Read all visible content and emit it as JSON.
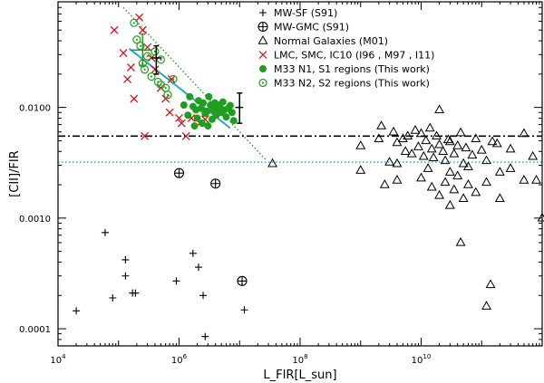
{
  "chart_data": {
    "type": "scatter",
    "title": "",
    "xlabel": "L_FIR[L_sun]",
    "ylabel": "[CII]/FIR",
    "xscale": "log",
    "yscale": "log",
    "xlim": [
      10000,
      1000000000000.0
    ],
    "ylim": [
      7e-05,
      0.09
    ],
    "x_tick_labels": [
      {
        "value": 10000,
        "base": "10",
        "exp": "4"
      },
      {
        "value": 1000000,
        "base": "10",
        "exp": "6"
      },
      {
        "value": 100000000,
        "base": "10",
        "exp": "8"
      },
      {
        "value": 10000000000,
        "base": "10",
        "exp": "10"
      }
    ],
    "y_tick_labels": [
      {
        "value": 0.0001,
        "label": "0.0001"
      },
      {
        "value": 0.001,
        "label": "0.0010"
      },
      {
        "value": 0.01,
        "label": "0.0100"
      }
    ],
    "legend_position": "top-right",
    "series": [
      {
        "name": "MW-SF (S91)",
        "marker": "plus",
        "color": "#000000",
        "points": [
          [
            20000,
            0.000145
          ],
          [
            60000,
            0.00074
          ],
          [
            80000,
            0.00019
          ],
          [
            130000,
            0.00042
          ],
          [
            130000,
            0.0003
          ],
          [
            170000,
            0.00021
          ],
          [
            190000,
            0.00021
          ],
          [
            900000,
            0.00027
          ],
          [
            1700000,
            0.00048
          ],
          [
            2100000,
            0.00036
          ],
          [
            2500000,
            0.0002
          ],
          [
            2700000,
            8.5e-05
          ],
          [
            12000000,
            0.000148
          ]
        ]
      },
      {
        "name": "MW-GMC (S91)",
        "marker": "circle-plus",
        "color": "#000000",
        "points": [
          [
            1000000,
            0.00255
          ],
          [
            4000000,
            0.00205
          ],
          [
            11000000,
            0.00027
          ]
        ]
      },
      {
        "name": "Normal Galaxies (M01)",
        "marker": "triangle",
        "color": "#000000",
        "points": [
          [
            35000000,
            0.0031
          ],
          [
            1000000000.0,
            0.0027
          ],
          [
            3000000000.0,
            0.0032
          ],
          [
            4000000000.0,
            0.0031
          ],
          [
            20000000000.0,
            0.0095
          ],
          [
            1000000000.0,
            0.0045
          ],
          [
            2200000000.0,
            0.0068
          ],
          [
            3500000000.0,
            0.006
          ],
          [
            4000000000.0,
            0.0048
          ],
          [
            5000000000.0,
            0.0052
          ],
          [
            5500000000.0,
            0.004
          ],
          [
            6000000000.0,
            0.0055
          ],
          [
            7000000000.0,
            0.0038
          ],
          [
            8000000000.0,
            0.0062
          ],
          [
            9000000000.0,
            0.0044
          ],
          [
            10000000000.0,
            0.0058
          ],
          [
            11000000000.0,
            0.0036
          ],
          [
            12000000000.0,
            0.005
          ],
          [
            13000000000.0,
            0.0028
          ],
          [
            14000000000.0,
            0.0065
          ],
          [
            15000000000.0,
            0.0042
          ],
          [
            16000000000.0,
            0.0035
          ],
          [
            18000000000.0,
            0.0055
          ],
          [
            20000000000.0,
            0.0046
          ],
          [
            23000000000.0,
            0.004
          ],
          [
            25000000000.0,
            0.0033
          ],
          [
            28000000000.0,
            0.0051
          ],
          [
            30000000000.0,
            0.0026
          ],
          [
            35000000000.0,
            0.0038
          ],
          [
            40000000000.0,
            0.0045
          ],
          [
            45000000000.0,
            0.0059
          ],
          [
            50000000000.0,
            0.0031
          ],
          [
            55000000000.0,
            0.0043
          ],
          [
            60000000000.0,
            0.0029
          ],
          [
            70000000000.0,
            0.0037
          ],
          [
            80000000000.0,
            0.0052
          ],
          [
            100000000000.0,
            0.0041
          ],
          [
            120000000000.0,
            0.0033
          ],
          [
            150000000000.0,
            0.0049
          ],
          [
            200000000000.0,
            0.0026
          ],
          [
            300000000000.0,
            0.0042
          ],
          [
            500000000000.0,
            0.0058
          ],
          [
            700000000000.0,
            0.0036
          ],
          [
            800000000000.0,
            0.0022
          ],
          [
            10000000000.0,
            0.0023
          ],
          [
            15000000000.0,
            0.0019
          ],
          [
            20000000000.0,
            0.0016
          ],
          [
            25000000000.0,
            0.0021
          ],
          [
            30000000000.0,
            0.0013
          ],
          [
            35000000000.0,
            0.0018
          ],
          [
            40000000000.0,
            0.0024
          ],
          [
            50000000000.0,
            0.0015
          ],
          [
            60000000000.0,
            0.002
          ],
          [
            80000000000.0,
            0.0017
          ],
          [
            120000000000.0,
            0.0021
          ],
          [
            200000000000.0,
            0.0015
          ],
          [
            500000000000.0,
            0.0022
          ],
          [
            1000000000000.0,
            0.001
          ],
          [
            45000000000.0,
            0.0006
          ],
          [
            140000000000.0,
            0.00025
          ],
          [
            120000000000.0,
            0.00016
          ],
          [
            2000000000.0,
            0.0052
          ],
          [
            4000000000.0,
            0.0022
          ],
          [
            2500000000.0,
            0.002
          ],
          [
            30000000000.0,
            0.0049
          ],
          [
            180000000000.0,
            0.0047
          ],
          [
            300000000000.0,
            0.0028
          ]
        ]
      },
      {
        "name": "LMC, SMC, IC10 (I96 , M97 , I11)",
        "marker": "x",
        "color": "#e3000f",
        "points": [
          [
            85000,
            0.05
          ],
          [
            120000,
            0.031
          ],
          [
            140000,
            0.018
          ],
          [
            160000,
            0.023
          ],
          [
            180000,
            0.012
          ],
          [
            220000,
            0.065
          ],
          [
            250000,
            0.05
          ],
          [
            270000,
            0.0055
          ],
          [
            300000,
            0.035
          ],
          [
            350000,
            0.028
          ],
          [
            400000,
            0.022
          ],
          [
            500000,
            0.015
          ],
          [
            600000,
            0.012
          ],
          [
            700000,
            0.009
          ],
          [
            750000,
            0.018
          ],
          [
            1000000,
            0.008
          ],
          [
            1100000,
            0.0072
          ],
          [
            1300000,
            0.0055
          ],
          [
            1600000,
            0.008
          ],
          [
            2200000,
            0.0072
          ],
          [
            2700000,
            0.0078
          ]
        ]
      },
      {
        "name": "M33 N1, S1 regions (This work)",
        "marker": "dot",
        "color": "#1f9e1f",
        "points": [
          [
            1200000,
            0.0105
          ],
          [
            1400000,
            0.0085
          ],
          [
            1500000,
            0.0125
          ],
          [
            1700000,
            0.0102
          ],
          [
            1900000,
            0.0095
          ],
          [
            2000000,
            0.008
          ],
          [
            2100000,
            0.0115
          ],
          [
            2300000,
            0.0098
          ],
          [
            2500000,
            0.011
          ],
          [
            2700000,
            0.0088
          ],
          [
            2900000,
            0.0092
          ],
          [
            3100000,
            0.0125
          ],
          [
            3300000,
            0.0105
          ],
          [
            3500000,
            0.0078
          ],
          [
            3700000,
            0.0095
          ],
          [
            3900000,
            0.011
          ],
          [
            4100000,
            0.0085
          ],
          [
            4400000,
            0.0098
          ],
          [
            4700000,
            0.0105
          ],
          [
            5000000,
            0.009
          ],
          [
            5300000,
            0.0112
          ],
          [
            5600000,
            0.0095
          ],
          [
            6000000,
            0.0082
          ],
          [
            6500000,
            0.0098
          ],
          [
            7000000,
            0.0104
          ],
          [
            7500000,
            0.009
          ],
          [
            8000000,
            0.0076
          ],
          [
            1800000,
            0.0068
          ],
          [
            2400000,
            0.0072
          ],
          [
            3000000,
            0.0068
          ]
        ]
      },
      {
        "name": "M33 N2, S2 regions (This work)",
        "marker": "circle-dot",
        "color": "#1f9e1f",
        "points": [
          [
            180000,
            0.058
          ],
          [
            200000,
            0.041
          ],
          [
            230000,
            0.036
          ],
          [
            250000,
            0.025
          ],
          [
            270000,
            0.022
          ],
          [
            300000,
            0.029
          ],
          [
            350000,
            0.019
          ],
          [
            400000,
            0.032
          ],
          [
            450000,
            0.017
          ],
          [
            500000,
            0.027
          ],
          [
            600000,
            0.015
          ],
          [
            650000,
            0.013
          ],
          [
            800000,
            0.018
          ],
          [
            500000,
            0.016
          ]
        ]
      }
    ],
    "reference_lines": [
      {
        "name": "average-line",
        "style": "dash-dot",
        "color": "#000000",
        "y": 0.0055
      },
      {
        "name": "cyan-line",
        "style": "dotted",
        "color": "#17a5c0",
        "y": 0.0032
      }
    ],
    "fit_lines": [
      {
        "name": "cyan-fit",
        "style": "solid",
        "color": "#2aa7c9",
        "from": [
          150000,
          0.034
        ],
        "to": [
          7000000,
          0.0065
        ]
      },
      {
        "name": "green-fit",
        "style": "dotted",
        "color": "#1f9e1f",
        "from": [
          120000,
          0.08
        ],
        "to": [
          28000000,
          0.0033
        ]
      }
    ],
    "error_bars": [
      {
        "name": "errorbar-m33-n2",
        "color": "#1f9e1f",
        "x": 250000,
        "y": 0.033,
        "ylo": 0.024,
        "yhi": 0.046,
        "xlo": 160000,
        "xhi": 350000
      },
      {
        "name": "errorbar-1",
        "color": "#000000",
        "x": 420000,
        "y": 0.028,
        "ylo": 0.02,
        "yhi": 0.036,
        "xlo": 350000,
        "xhi": 520000
      },
      {
        "name": "errorbar-2",
        "color": "#000000",
        "x": 10000000,
        "y": 0.01,
        "ylo": 0.0072,
        "yhi": 0.0135,
        "xlo": 8500000,
        "xhi": 11500000
      }
    ]
  }
}
